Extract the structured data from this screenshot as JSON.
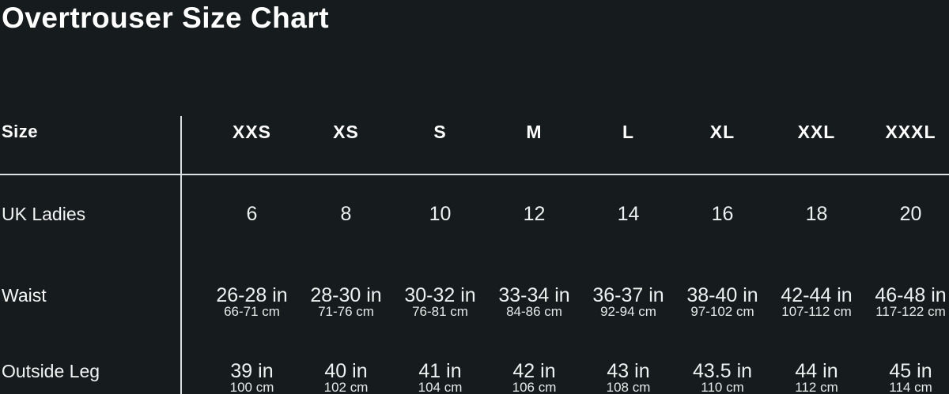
{
  "title": "Overtrouser Size Chart",
  "table": {
    "corner_label": "Size",
    "column_headers": [
      "XXS",
      "XS",
      "S",
      "M",
      "L",
      "XL",
      "XXL",
      "XXXL"
    ],
    "rows": [
      {
        "label": "UK Ladies",
        "values": [
          "6",
          "8",
          "10",
          "12",
          "14",
          "16",
          "18",
          "20"
        ]
      },
      {
        "label": "Waist",
        "values": [
          "26-28 in",
          "28-30 in",
          "30-32 in",
          "33-34 in",
          "36-37 in",
          "38-40 in",
          "42-44 in",
          "46-48 in"
        ],
        "sub_values": [
          "66-71 cm",
          "71-76 cm",
          "76-81 cm",
          "84-86 cm",
          "92-94 cm",
          "97-102 cm",
          "107-112 cm",
          "117-122 cm"
        ]
      },
      {
        "label": "Outside Leg",
        "values": [
          "39 in",
          "40 in",
          "41 in",
          "42 in",
          "43 in",
          "43.5 in",
          "44 in",
          "45 in"
        ],
        "sub_values": [
          "100 cm",
          "102 cm",
          "104 cm",
          "106 cm",
          "108 cm",
          "110 cm",
          "112 cm",
          "114 cm"
        ]
      }
    ]
  },
  "colors": {
    "background": "#161c1d",
    "title_text": "#ffffff",
    "header_text": "#ffffff",
    "value_text": "#eef1f1",
    "divider": "#dde1e1"
  },
  "chart_data": {
    "type": "table",
    "title": "Overtrouser Size Chart",
    "columns": [
      "Size",
      "XXS",
      "XS",
      "S",
      "M",
      "L",
      "XL",
      "XXL",
      "XXXL"
    ],
    "rows": [
      [
        "UK Ladies",
        "6",
        "8",
        "10",
        "12",
        "14",
        "16",
        "18",
        "20"
      ],
      [
        "Waist",
        "26-28 in (66-71 cm)",
        "28-30 in (71-76 cm)",
        "30-32 in (76-81 cm)",
        "33-34 in (84-86 cm)",
        "36-37 in (92-94 cm)",
        "38-40 in (97-102 cm)",
        "42-44 in (107-112 cm)",
        "46-48 in (117-122 cm)"
      ],
      [
        "Outside Leg",
        "39 in (100 cm)",
        "40 in (102 cm)",
        "41 in (104 cm)",
        "42 in (106 cm)",
        "43 in (108 cm)",
        "43.5 in (110 cm)",
        "44 in (112 cm)",
        "45 in (114 cm)"
      ]
    ]
  }
}
